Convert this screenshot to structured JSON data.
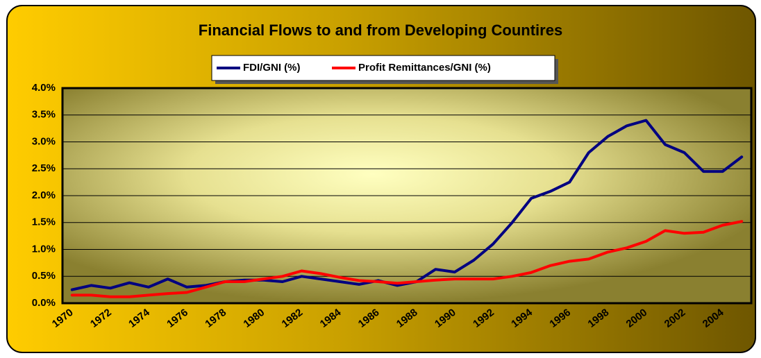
{
  "chart_data": {
    "type": "line",
    "title": "Financial Flows to and from Developing Countires",
    "categories": [
      "1970",
      null,
      "1972",
      null,
      "1974",
      null,
      "1976",
      null,
      "1978",
      null,
      "1980",
      null,
      "1982",
      null,
      "1984",
      null,
      "1986",
      null,
      "1988",
      null,
      "1990",
      null,
      "1992",
      null,
      "1994",
      null,
      "1996",
      null,
      "1998",
      null,
      "2000",
      null,
      "2002",
      null,
      "2004",
      null
    ],
    "series": [
      {
        "name": "FDI/GNI (%)",
        "color": "#000080",
        "values": [
          0.25,
          0.33,
          0.28,
          0.38,
          0.3,
          0.45,
          0.3,
          0.33,
          0.4,
          0.43,
          0.43,
          0.4,
          0.5,
          0.45,
          0.4,
          0.35,
          0.42,
          0.33,
          0.4,
          0.63,
          0.58,
          0.8,
          1.1,
          1.5,
          1.95,
          2.08,
          2.25,
          2.8,
          3.1,
          3.3,
          3.4,
          2.95,
          2.8,
          2.45,
          2.45,
          2.72
        ]
      },
      {
        "name": "Profit Remittances/GNI (%)",
        "color": "#ff0000",
        "values": [
          0.15,
          0.15,
          0.12,
          0.12,
          0.15,
          0.18,
          0.2,
          0.3,
          0.4,
          0.4,
          0.45,
          0.5,
          0.6,
          0.55,
          0.48,
          0.42,
          0.4,
          0.37,
          0.4,
          0.43,
          0.45,
          0.45,
          0.45,
          0.5,
          0.57,
          0.7,
          0.78,
          0.82,
          0.95,
          1.03,
          1.15,
          1.35,
          1.3,
          1.32,
          1.45,
          1.52
        ]
      }
    ],
    "ylim": [
      0,
      4
    ],
    "yticks": [
      {
        "value": 0,
        "label": "0.0%"
      },
      {
        "value": 0.5,
        "label": "0.5%"
      },
      {
        "value": 1,
        "label": "1.0%"
      },
      {
        "value": 1.5,
        "label": "1.5%"
      },
      {
        "value": 2,
        "label": "2.0%"
      },
      {
        "value": 2.5,
        "label": "2.5%"
      },
      {
        "value": 3,
        "label": "3.0%"
      },
      {
        "value": 3.5,
        "label": "3.5%"
      },
      {
        "value": 4,
        "label": "4.0%"
      }
    ],
    "grid": true,
    "legend": "top"
  }
}
